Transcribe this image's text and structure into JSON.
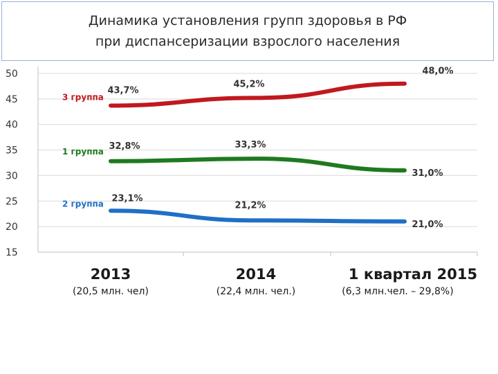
{
  "title": {
    "line1": "Динамика установления групп здоровья в РФ",
    "line2": "при диспансеризации взрослого населения"
  },
  "colors": {
    "group3": "#c0191f",
    "group1": "#1e7a1e",
    "group2": "#1f6fc6",
    "grid": "#d9d9d9",
    "axis": "#bfbfbf"
  },
  "chart_data": {
    "type": "line",
    "ylim": [
      15,
      50
    ],
    "yticks": [
      15,
      20,
      25,
      30,
      35,
      40,
      45,
      50
    ],
    "grid": true,
    "categories": [
      "2013",
      "2014",
      "1 квартал 2015"
    ],
    "category_notes": [
      "(20,5 млн. чел)",
      "(22,4 млн. чел.)",
      "(6,3 млн.чел. – 29,8%)"
    ],
    "series": [
      {
        "name": "3 группа",
        "color": "#c0191f",
        "values": [
          43.7,
          45.2,
          48.0
        ],
        "labels": [
          "43,7%",
          "45,2%",
          "48,0%"
        ]
      },
      {
        "name": "1 группа",
        "color": "#1e7a1e",
        "values": [
          32.8,
          33.3,
          31.0
        ],
        "labels": [
          "32,8%",
          "33,3%",
          "31,0%"
        ]
      },
      {
        "name": "2 группа",
        "color": "#1f6fc6",
        "values": [
          23.1,
          21.2,
          21.0
        ],
        "labels": [
          "23,1%",
          "21,2%",
          "21,0%"
        ]
      }
    ]
  }
}
